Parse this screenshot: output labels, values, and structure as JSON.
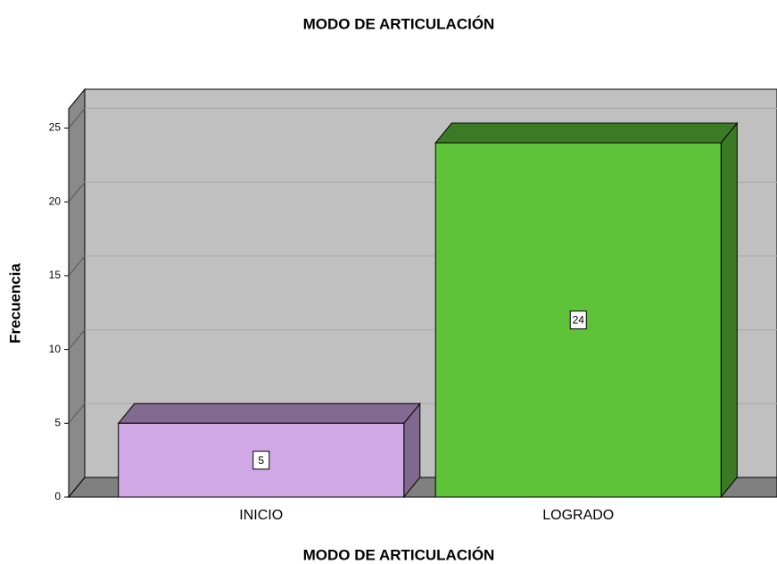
{
  "chart_data": {
    "type": "bar3d",
    "title": "MODO DE ARTICULACIÓN",
    "x_label": "MODO DE ARTICULACIÓN",
    "y_label": "Frecuencia",
    "categories": [
      "INICIO",
      "LOGRADO"
    ],
    "values": [
      5,
      24
    ],
    "colors": [
      "#d0a8e6",
      "#5fc33a"
    ],
    "ylim": [
      0,
      26.3
    ],
    "yticks": [
      0,
      5,
      10,
      15,
      20,
      25
    ],
    "grid": true
  }
}
